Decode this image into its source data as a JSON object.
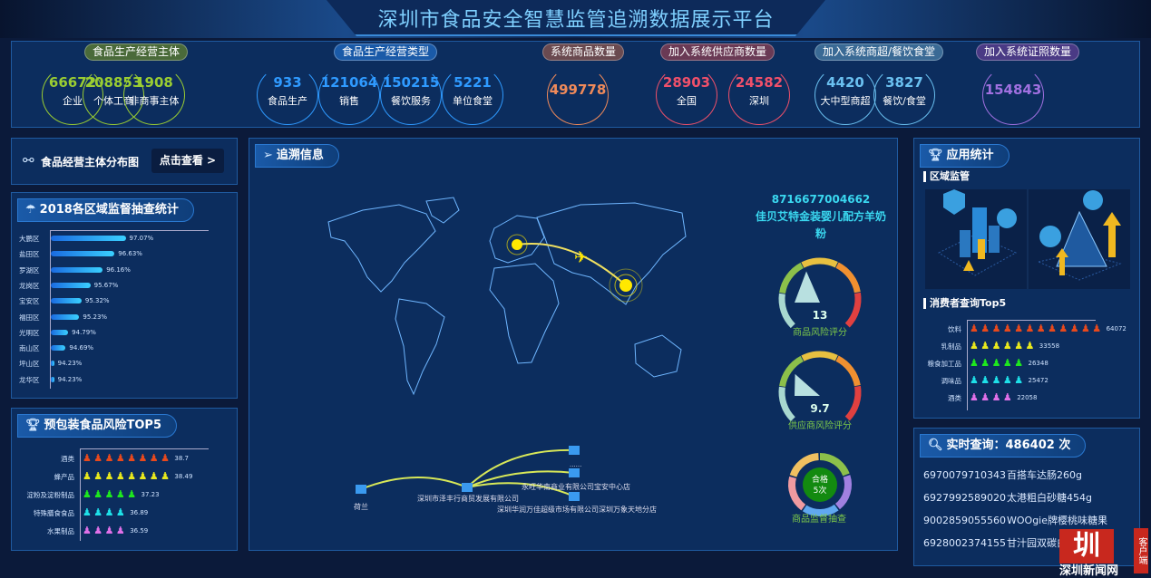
{
  "header": {
    "title": "深圳市食品安全智慧监管追溯数据展示平台"
  },
  "stats": [
    {
      "label": "食品生产经营主体",
      "color": "#9acd32",
      "label_bg": "#4a6a3a",
      "items": [
        {
          "value": "66672",
          "label": "企业"
        },
        {
          "value": "208853",
          "label": "个体工商"
        },
        {
          "value": "1908",
          "label": "非商事主体"
        }
      ]
    },
    {
      "label": "食品生产经营类型",
      "color": "#2f9aff",
      "label_bg": "#1a5aa8",
      "items": [
        {
          "value": "933",
          "label": "食品生产"
        },
        {
          "value": "121064",
          "label": "销售"
        },
        {
          "value": "150215",
          "label": "餐饮服务"
        },
        {
          "value": "5221",
          "label": "单位食堂"
        }
      ]
    },
    {
      "label": "系统商品数量",
      "color": "#f08a5a",
      "label_bg": "#6a4a50",
      "items": [
        {
          "value": "499778",
          "label": ""
        }
      ]
    },
    {
      "label": "加入系统供应商数量",
      "color": "#f0506a",
      "label_bg": "#6a3a55",
      "items": [
        {
          "value": "28903",
          "label": "全国"
        },
        {
          "value": "24582",
          "label": "深圳"
        }
      ]
    },
    {
      "label": "加入系统商超/餐饮食堂",
      "color": "#6ac0f0",
      "label_bg": "#3a6a95",
      "items": [
        {
          "value": "4420",
          "label": "大中型商超"
        },
        {
          "value": "3827",
          "label": "餐饮/食堂"
        }
      ]
    },
    {
      "label": "加入系统证照数量",
      "color": "#a070e0",
      "label_bg": "#4a3a85",
      "items": [
        {
          "value": "154843",
          "label": ""
        }
      ]
    }
  ],
  "distribution": {
    "title": "食品经营主体分布图",
    "button": "点击查看 >"
  },
  "region_chart": {
    "title": "2018各区域监督抽查统计",
    "chart_data": {
      "type": "bar",
      "orientation": "horizontal",
      "categories": [
        "大鹏区",
        "盐田区",
        "罗湖区",
        "龙岗区",
        "宝安区",
        "福田区",
        "光明区",
        "南山区",
        "坪山区",
        "龙华区"
      ],
      "values": [
        97.07,
        96.63,
        96.16,
        95.67,
        95.32,
        95.23,
        94.79,
        94.69,
        94.23,
        94.23
      ],
      "labels": [
        "97.07%",
        "96.63%",
        "96.16%",
        "95.67%",
        "95.32%",
        "95.23%",
        "94.79%",
        "94.69%",
        "94.23%",
        "94.23%"
      ],
      "xlim": [
        94.1,
        100.4
      ]
    }
  },
  "risk_top5": {
    "title": "预包装食品风险TOP5",
    "chart_data": {
      "type": "pictorial-bar",
      "categories": [
        "酒类",
        "蜂产品",
        "淀粉及淀粉制品",
        "特殊膳食食品",
        "水果制品"
      ],
      "values": [
        38.7,
        38.49,
        37.23,
        36.89,
        36.59
      ],
      "labels": [
        "38.7",
        "38.49",
        "37.23",
        "36.89",
        "36.59"
      ],
      "icons": [
        8,
        8,
        5,
        4,
        4
      ],
      "colors": [
        "#e8491d",
        "#e8e81d",
        "#1ee81e",
        "#1ee0e8",
        "#e070e8"
      ]
    }
  },
  "trace": {
    "title": "追溯信息",
    "barcode": "8716677004662",
    "product": "佳贝艾特金装婴儿配方羊奶粉",
    "gauge1": {
      "value": "13",
      "label": "商品风险评分",
      "fraction": 0.13
    },
    "gauge2": {
      "value": "9.7",
      "label": "供应商风险评分",
      "fraction": 0.097
    },
    "ring": {
      "center_line1": "合格",
      "center_line2": "5次",
      "label": "商品监督抽查"
    },
    "flow": {
      "origin": "荷兰",
      "hub": "深圳市泽丰行商贸发展有限公司",
      "targets": [
        "......",
        "永旺华南商业有限公司宝安中心店",
        "深圳华润万佳超级市场有限公司深圳万象天地分店"
      ]
    }
  },
  "app_stats": {
    "title": "应用统计",
    "region_section": "区域监管",
    "consumer_section": "消费者查询Top5",
    "chart_data": {
      "type": "pictorial-bar",
      "categories": [
        "饮料",
        "乳制品",
        "粮食加工品",
        "调味品",
        "酒类"
      ],
      "values": [
        64072,
        33558,
        26348,
        25472,
        22058
      ],
      "labels": [
        "64072",
        "33558",
        "26348",
        "25472",
        "22058"
      ],
      "icons": [
        12,
        6,
        5,
        5,
        4
      ],
      "colors": [
        "#e8491d",
        "#e8e81d",
        "#1ee81e",
        "#1ee0e8",
        "#e070e8"
      ]
    }
  },
  "realtime": {
    "title": "实时查询：486402 次",
    "rows": [
      {
        "code": "6970079710343",
        "name": "百搭车达肠260g"
      },
      {
        "code": "6927992589020",
        "name": "太港粗白砂糖454g"
      },
      {
        "code": "9002859055560",
        "name": "WOOgie牌樱桃味糖果"
      },
      {
        "code": "6928002374155",
        "name": "甘汁园双碳白砂糖"
      }
    ]
  },
  "watermark": {
    "logo": "圳",
    "name": "深圳新闻网",
    "tag": "客户端"
  }
}
